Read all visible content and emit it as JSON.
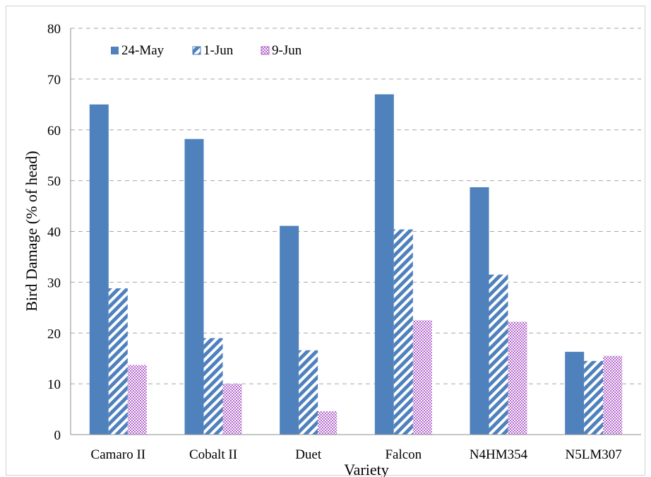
{
  "chart_data": {
    "type": "bar",
    "title": "",
    "xlabel": "Variety",
    "ylabel": "Bird Damage (% of head)",
    "categories": [
      "Camaro II",
      "Cobalt II",
      "Duet",
      "Falcon",
      "N4HM354",
      "N5LM307"
    ],
    "series": [
      {
        "name": "24-May",
        "values": [
          65,
          58.2,
          41.1,
          67,
          48.7,
          16.3
        ],
        "color": "#4f81bd",
        "pattern": "solid"
      },
      {
        "name": "1-Jun",
        "values": [
          28.8,
          19,
          16.6,
          40.4,
          31.5,
          14.5
        ],
        "color": "#4f81bd",
        "pattern": "diagonal-stripe"
      },
      {
        "name": "9-Jun",
        "values": [
          13.7,
          10,
          4.6,
          22.5,
          22.2,
          15.5
        ],
        "color": "#b366cc",
        "pattern": "checker"
      }
    ],
    "ylim": [
      0,
      80
    ],
    "yticks": [
      0,
      10,
      20,
      30,
      40,
      50,
      60,
      70,
      80
    ],
    "grid": true,
    "legend_position": "top-left"
  }
}
